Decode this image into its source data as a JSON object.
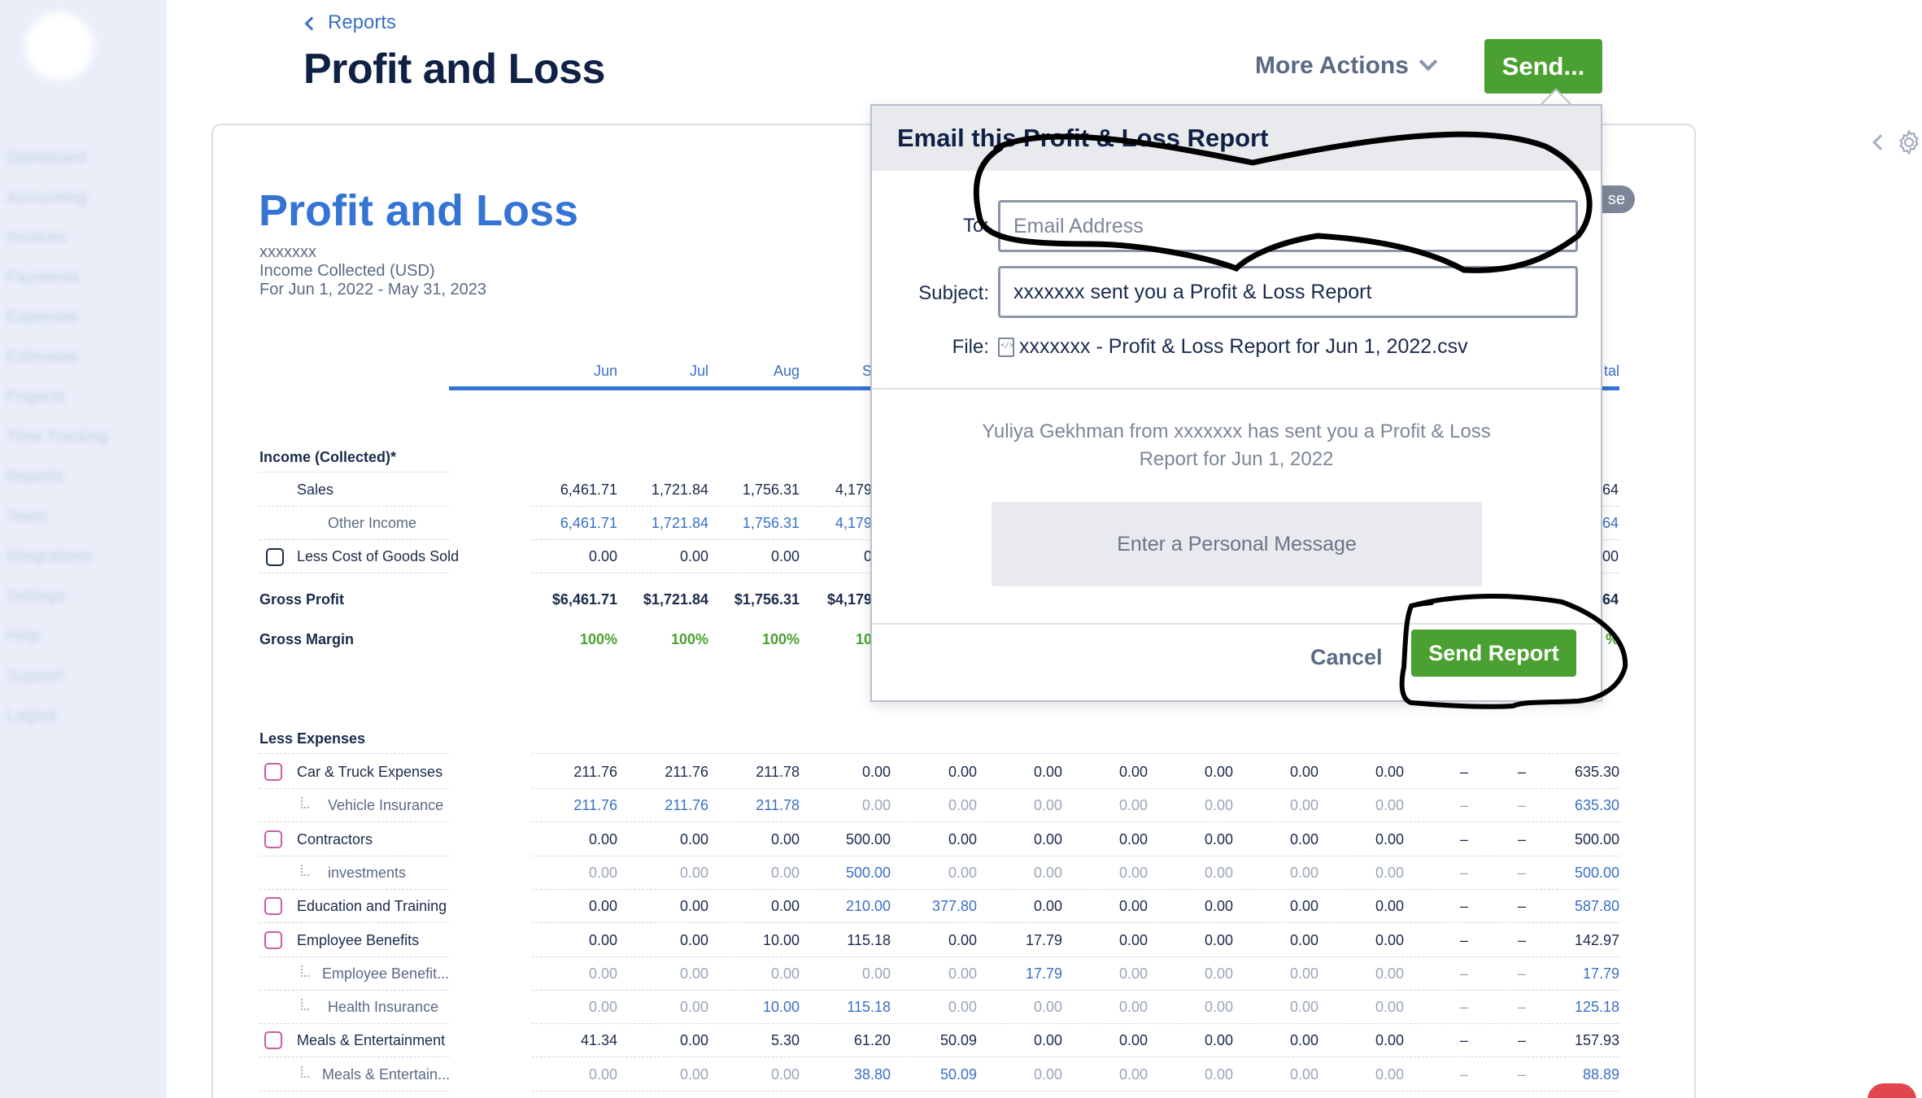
{
  "sidebar": {
    "items": [
      "Dashboard",
      "Accounting",
      "Invoices",
      "Payments",
      "Expenses",
      "Estimates",
      "Projects",
      "Time Tracking",
      "Reports",
      "Team",
      "Integrations",
      "Settings",
      "Help",
      "Support",
      "Logout"
    ]
  },
  "header": {
    "back_label": "Reports",
    "title": "Profit and Loss",
    "more_actions_label": "More Actions",
    "send_label": "Send..."
  },
  "report": {
    "title": "Profit and Loss",
    "company": "xxxxxxx",
    "basis": "Income Collected (USD)",
    "period": "For Jun 1, 2022 - May 31, 2023",
    "cash_badge": "se",
    "months": [
      "Jun",
      "Jul",
      "Aug",
      "S",
      "",
      "",
      "",
      "",
      "",
      "",
      "",
      "",
      "tal"
    ],
    "sections": {
      "income": "Income (Collected)*",
      "gross_profit": "Gross Profit",
      "gross_margin": "Gross Margin",
      "expenses": "Less Expenses"
    },
    "income_rows": [
      {
        "label": "Sales",
        "values": [
          "6,461.71",
          "1,721.84",
          "1,756.31",
          "4,179",
          "64"
        ]
      },
      {
        "label": "Other Income",
        "values": [
          "6,461.71",
          "1,721.84",
          "1,756.31",
          "4,179",
          "64"
        ]
      },
      {
        "label": "Less Cost of Goods Sold",
        "values": [
          "0.00",
          "0.00",
          "0.00",
          "0",
          "00"
        ]
      }
    ],
    "gross_profit_values": [
      "$6,461.71",
      "$1,721.84",
      "$1,756.31",
      "$4,179",
      "64"
    ],
    "gross_margin_values": [
      "100%",
      "100%",
      "100%",
      "10",
      "%"
    ],
    "expense_rows": [
      {
        "label": "Car & Truck Expenses",
        "values": [
          "211.76",
          "211.76",
          "211.78",
          "0.00",
          "0.00",
          "0.00",
          "0.00",
          "0.00",
          "0.00",
          "0.00",
          "–",
          "–",
          "635.30"
        ]
      },
      {
        "label": "Vehicle Insurance",
        "values": [
          "211.76",
          "211.76",
          "211.78",
          "0.00",
          "0.00",
          "0.00",
          "0.00",
          "0.00",
          "0.00",
          "0.00",
          "–",
          "–",
          "635.30"
        ]
      },
      {
        "label": "Contractors",
        "values": [
          "0.00",
          "0.00",
          "0.00",
          "500.00",
          "0.00",
          "0.00",
          "0.00",
          "0.00",
          "0.00",
          "0.00",
          "–",
          "–",
          "500.00"
        ]
      },
      {
        "label": "investments",
        "values": [
          "0.00",
          "0.00",
          "0.00",
          "500.00",
          "0.00",
          "0.00",
          "0.00",
          "0.00",
          "0.00",
          "0.00",
          "–",
          "–",
          "500.00"
        ]
      },
      {
        "label": "Education and Training",
        "values": [
          "0.00",
          "0.00",
          "0.00",
          "210.00",
          "377.80",
          "0.00",
          "0.00",
          "0.00",
          "0.00",
          "0.00",
          "–",
          "–",
          "587.80"
        ]
      },
      {
        "label": "Employee Benefits",
        "values": [
          "0.00",
          "0.00",
          "10.00",
          "115.18",
          "0.00",
          "17.79",
          "0.00",
          "0.00",
          "0.00",
          "0.00",
          "–",
          "–",
          "142.97"
        ]
      },
      {
        "label": "Employee Benefit...",
        "values": [
          "0.00",
          "0.00",
          "0.00",
          "0.00",
          "0.00",
          "17.79",
          "0.00",
          "0.00",
          "0.00",
          "0.00",
          "–",
          "–",
          "17.79"
        ]
      },
      {
        "label": "Health Insurance",
        "values": [
          "0.00",
          "0.00",
          "10.00",
          "115.18",
          "0.00",
          "0.00",
          "0.00",
          "0.00",
          "0.00",
          "0.00",
          "–",
          "–",
          "125.18"
        ]
      },
      {
        "label": "Meals & Entertainment",
        "values": [
          "41.34",
          "0.00",
          "5.30",
          "61.20",
          "50.09",
          "0.00",
          "0.00",
          "0.00",
          "0.00",
          "0.00",
          "–",
          "–",
          "157.93"
        ]
      },
      {
        "label": "Meals & Entertain...",
        "values": [
          "0.00",
          "0.00",
          "0.00",
          "38.80",
          "50.09",
          "0.00",
          "0.00",
          "0.00",
          "0.00",
          "0.00",
          "–",
          "–",
          "88.89"
        ]
      }
    ]
  },
  "popup": {
    "title": "Email this Profit & Loss Report",
    "to_label": "To:",
    "to_placeholder": "Email Address",
    "to_value": "",
    "subject_label": "Subject:",
    "subject_value": "xxxxxxx sent you a Profit & Loss Report",
    "file_label": "File:",
    "file_name": "xxxxxxx - Profit & Loss Report for Jun 1, 2022.csv",
    "preview_text": "Yuliya Gekhman from xxxxxxx has sent you a Profit & Loss Report for Jun 1, 2022",
    "personal_message_placeholder": "Enter a Personal Message",
    "cancel_label": "Cancel",
    "send_report_label": "Send Report"
  },
  "colors": {
    "brand_blue": "#3474d4",
    "action_green": "#4aa030",
    "title_navy": "#0f2144"
  }
}
